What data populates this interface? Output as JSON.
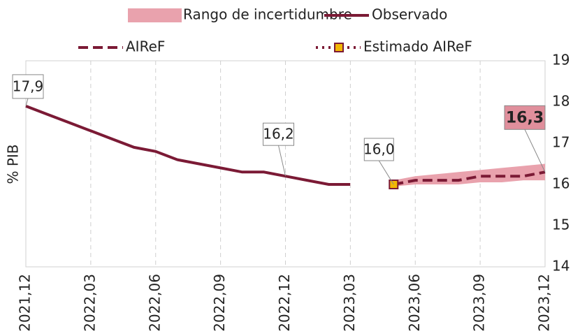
{
  "chart_data": {
    "type": "line",
    "ylabel": "% PIB",
    "categories": [
      "2021,12",
      null,
      null,
      "2022,03",
      null,
      null,
      "2022,06",
      null,
      null,
      "2022,09",
      null,
      null,
      "2022,12",
      null,
      null,
      "2023,03",
      null,
      null,
      "2023,06",
      null,
      null,
      "2023,09",
      null,
      null,
      "2023,12"
    ],
    "ylim": [
      14,
      19
    ],
    "yticks": [
      14,
      15,
      16,
      17,
      18,
      19
    ],
    "y_axis_side": "right",
    "xgrid": true,
    "band": {
      "name": "Rango de incertidumbre",
      "color": "#e9a2ad",
      "low": [
        null,
        null,
        null,
        null,
        null,
        null,
        null,
        null,
        null,
        null,
        null,
        null,
        null,
        null,
        null,
        null,
        null,
        15.95,
        16.0,
        16.0,
        16.0,
        16.05,
        16.05,
        16.1,
        16.1
      ],
      "high": [
        null,
        null,
        null,
        null,
        null,
        null,
        null,
        null,
        null,
        null,
        null,
        null,
        null,
        null,
        null,
        null,
        null,
        16.1,
        16.2,
        16.25,
        16.3,
        16.35,
        16.4,
        16.45,
        16.5
      ]
    },
    "series": [
      {
        "name": "Observado",
        "color": "#7b1a35",
        "style": "solid",
        "values": [
          17.9,
          17.7,
          17.5,
          17.3,
          17.1,
          16.9,
          16.8,
          16.6,
          16.5,
          16.4,
          16.3,
          16.3,
          16.2,
          16.1,
          16.0,
          16.0,
          null,
          null,
          null,
          null,
          null,
          null,
          null,
          null,
          null
        ],
        "value_labels": [
          "17,9",
          null,
          null,
          null,
          null,
          null,
          null,
          null,
          null,
          null,
          null,
          null,
          "16,2",
          null,
          null,
          null,
          null,
          null,
          null,
          null,
          null,
          null,
          null,
          null,
          null
        ]
      },
      {
        "name": "AIReF",
        "color": "#7b1a35",
        "style": "dashed",
        "values": [
          null,
          null,
          null,
          null,
          null,
          null,
          null,
          null,
          null,
          null,
          null,
          null,
          null,
          null,
          null,
          null,
          null,
          16.0,
          16.1,
          16.1,
          16.1,
          16.2,
          16.2,
          16.2,
          16.3
        ],
        "value_labels": [
          null,
          null,
          null,
          null,
          null,
          null,
          null,
          null,
          null,
          null,
          null,
          null,
          null,
          null,
          null,
          null,
          null,
          null,
          null,
          null,
          null,
          null,
          null,
          null,
          "16,3"
        ]
      },
      {
        "name": "Estimado AIReF",
        "color": "#7b1a35",
        "style": "dotted",
        "marker_color": "#f2b705",
        "values": [
          null,
          null,
          null,
          null,
          null,
          null,
          null,
          null,
          null,
          null,
          null,
          null,
          null,
          null,
          null,
          16.0,
          16.0,
          16.0,
          null,
          null,
          null,
          null,
          null,
          null,
          null
        ],
        "value_labels": [
          null,
          null,
          null,
          null,
          null,
          null,
          null,
          null,
          null,
          null,
          null,
          null,
          null,
          null,
          null,
          null,
          null,
          "16,0",
          null,
          null,
          null,
          null,
          null,
          null,
          null
        ]
      }
    ]
  }
}
